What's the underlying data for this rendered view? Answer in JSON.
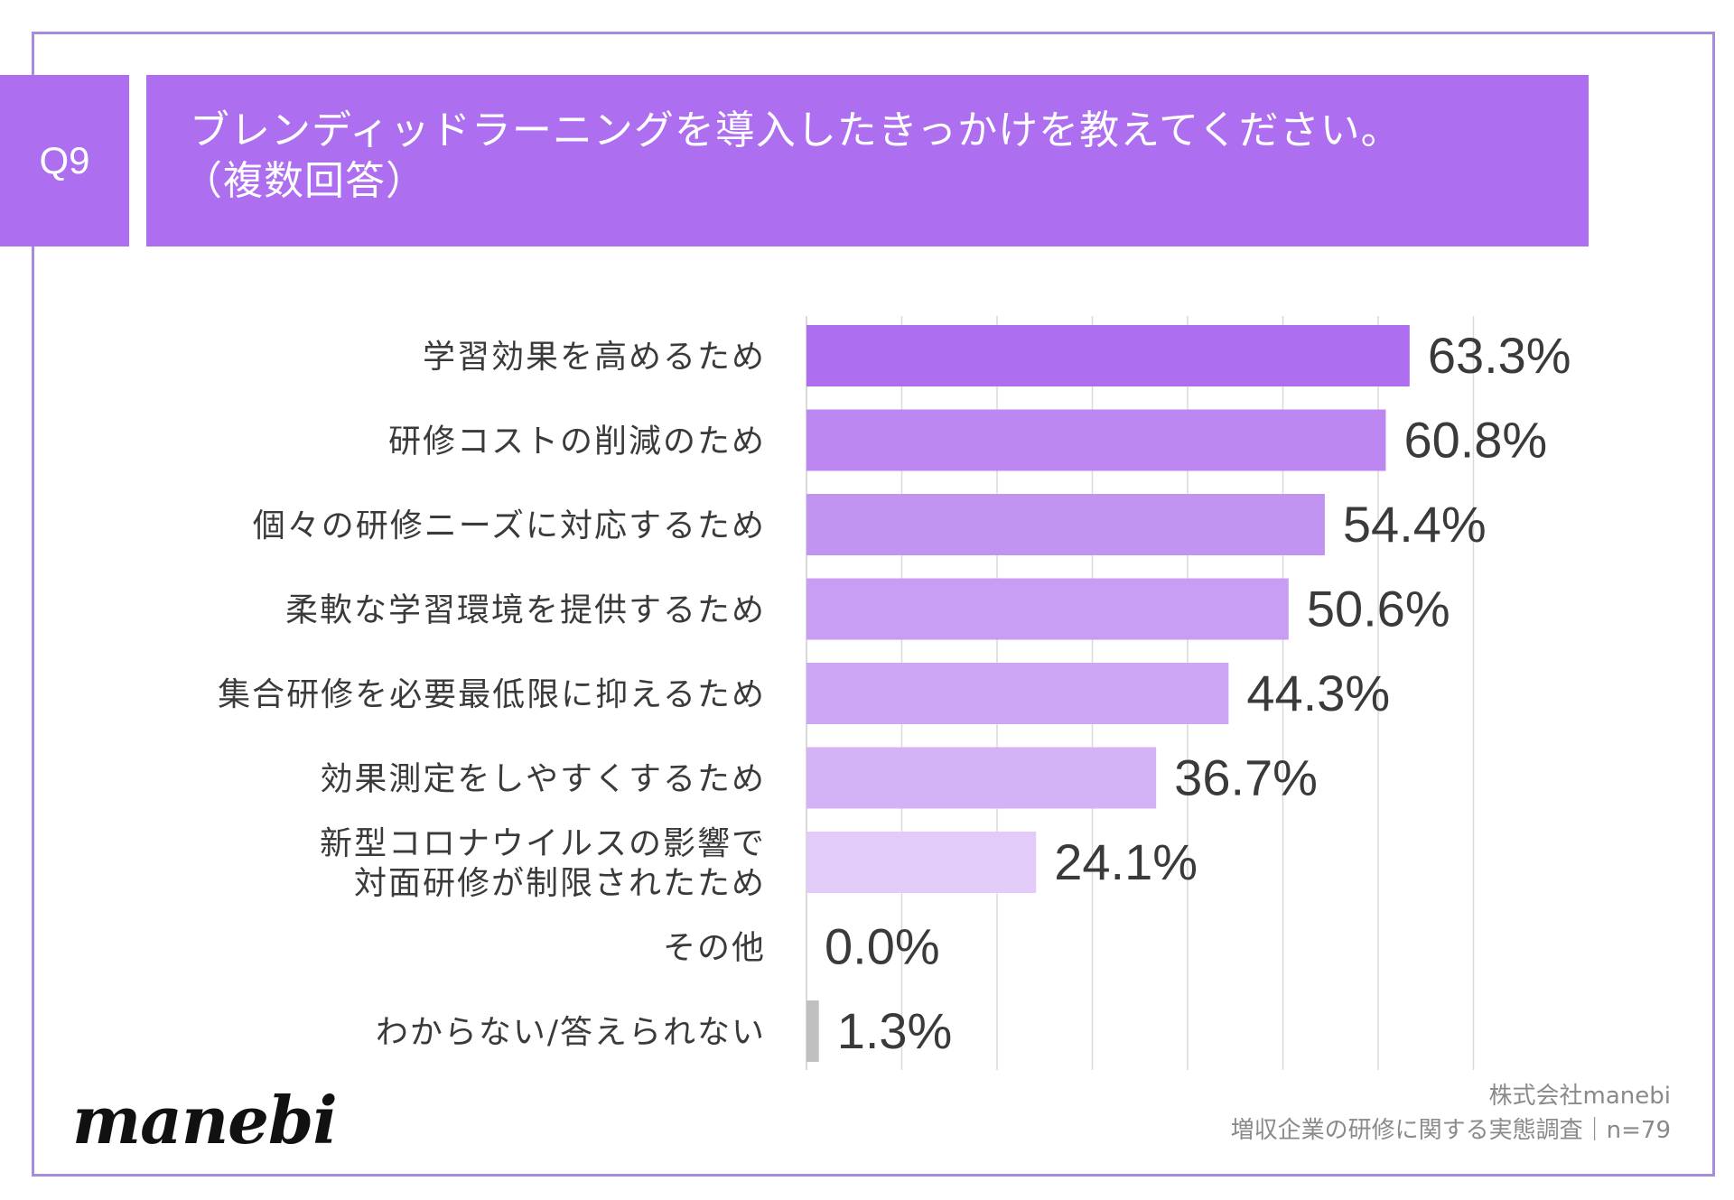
{
  "header": {
    "question_number": "Q9",
    "title_line1": "ブレンディッドラーニングを導入したきっかけを教えてください。",
    "title_line2": "（複数回答）"
  },
  "chart_data": {
    "type": "bar",
    "orientation": "horizontal",
    "title": "ブレンディッドラーニングを導入したきっかけを教えてください。（複数回答）",
    "xlim": [
      0,
      70
    ],
    "grid": true,
    "unit": "%",
    "categories": [
      [
        "学習効果を高めるため"
      ],
      [
        "研修コストの削減のため"
      ],
      [
        "個々の研修ニーズに対応するため"
      ],
      [
        "柔軟な学習環境を提供するため"
      ],
      [
        "集合研修を必要最低限に抑えるため"
      ],
      [
        "効果測定をしやすくするため"
      ],
      [
        "新型コロナウイルスの影響で",
        "対面研修が制限されたため"
      ],
      [
        "その他"
      ],
      [
        "わからない/答えられない"
      ]
    ],
    "values": [
      63.3,
      60.8,
      54.4,
      50.6,
      44.3,
      36.7,
      24.1,
      0.0,
      1.3
    ],
    "value_labels": [
      "63.3%",
      "60.8%",
      "54.4%",
      "50.6%",
      "44.3%",
      "36.7%",
      "24.1%",
      "0.0%",
      "1.3%"
    ],
    "colors": [
      "#ad6ef0",
      "#bd87f2",
      "#c294f2",
      "#c89df4",
      "#cda6f5",
      "#d4b2f6",
      "#e2cbf9",
      "#e2cbf9",
      "#c0c0c0"
    ]
  },
  "footer": {
    "logo": "manebi",
    "company": "株式会社manebi",
    "survey": "増収企業の研修に関する実態調査｜n=79"
  },
  "colors": {
    "accent": "#ad6ef0",
    "frame": "#a78be0",
    "grid": "#d9d9d9",
    "text": "#3a3a3a"
  }
}
